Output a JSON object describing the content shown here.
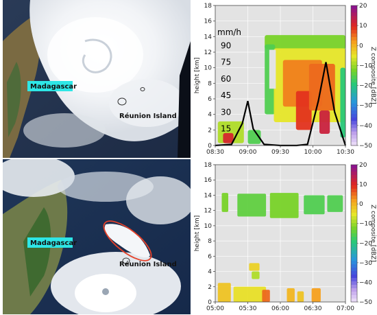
{
  "satellite_top": {
    "label_madagascar": "Madagascar",
    "label_reunion": "Réunion Island"
  },
  "satellite_bottom": {
    "label_madagascar": "Madagascar",
    "label_reunion": "Réunion Island"
  },
  "colorbar": {
    "label": "Z composite [dBZ]",
    "ticks": [
      "20",
      "10",
      "0",
      "−10",
      "−20",
      "−30",
      "−40",
      "−50"
    ]
  },
  "chart_data": [
    {
      "type": "heatmap",
      "title": "",
      "xlabel": "",
      "ylabel": "height [km]",
      "x_ticks": [
        "08:30",
        "09:00",
        "09:30",
        "10:00",
        "10:30"
      ],
      "y_ticks": [
        "0",
        "2",
        "4",
        "6",
        "8",
        "10",
        "12",
        "14",
        "16",
        "18"
      ],
      "ylim": [
        0,
        18
      ],
      "colorbar_label": "Z composite [dBZ]",
      "colorbar_range": [
        -50,
        20
      ],
      "rain_rate_axis": {
        "unit": "mm/h",
        "ticks": [
          "15",
          "30",
          "45",
          "60",
          "75",
          "90"
        ]
      },
      "rain_rate_series": {
        "name": "rain rate",
        "x": [
          "08:30",
          "08:45",
          "08:55",
          "09:00",
          "09:05",
          "09:15",
          "09:30",
          "09:45",
          "09:55",
          "10:05",
          "10:12",
          "10:20",
          "10:30"
        ],
        "y": [
          0,
          1,
          20,
          40,
          15,
          1,
          0,
          0,
          1,
          40,
          75,
          30,
          0
        ]
      },
      "grid": true
    },
    {
      "type": "heatmap",
      "title": "",
      "xlabel": "",
      "ylabel": "height [km]",
      "x_ticks": [
        "05:00",
        "05:30",
        "06:00",
        "06:30",
        "07:00"
      ],
      "y_ticks": [
        "0",
        "2",
        "4",
        "6",
        "8",
        "10",
        "12",
        "14",
        "16",
        "18"
      ],
      "ylim": [
        0,
        18
      ],
      "colorbar_label": "Z composite [dBZ]",
      "colorbar_range": [
        -50,
        20
      ],
      "grid": true
    }
  ]
}
